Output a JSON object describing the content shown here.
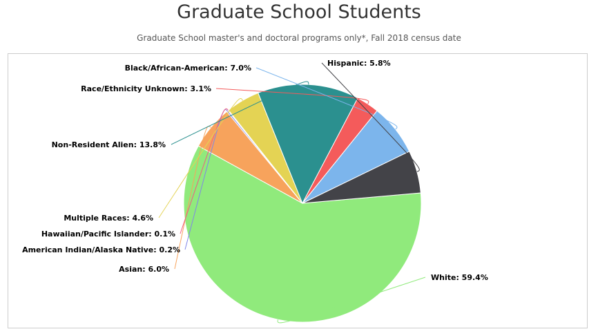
{
  "title": "Graduate School Students",
  "subtitle": "Graduate School master's and doctoral programs only*, Fall 2018 census date",
  "chart_data": {
    "type": "pie",
    "slices": [
      {
        "label": "White",
        "value": 59.4,
        "text": "White: 59.4%",
        "color": "#90ea7c"
      },
      {
        "label": "Asian",
        "value": 6.0,
        "text": "Asian: 6.0%",
        "color": "#f7a35c"
      },
      {
        "label": "American Indian/Alaska Native",
        "value": 0.2,
        "text": "American Indian/Alaska Native: 0.2%",
        "color": "#8085e9"
      },
      {
        "label": "Hawaiian/Pacific Islander",
        "value": 0.1,
        "text": "Hawaiian/Pacific Islander: 0.1%",
        "color": "#f15c80"
      },
      {
        "label": "Multiple Races",
        "value": 4.6,
        "text": "Multiple Races: 4.6%",
        "color": "#e4d354"
      },
      {
        "label": "Non-Resident Alien",
        "value": 13.8,
        "text": "Non-Resident Alien: 13.8%",
        "color": "#2b908f"
      },
      {
        "label": "Race/Ethnicity Unknown",
        "value": 3.1,
        "text": "Race/Ethnicity Unknown: 3.1%",
        "color": "#f45b5b"
      },
      {
        "label": "Black/African-American",
        "value": 7.0,
        "text": "Black/African-American: 7.0%",
        "color": "#7cb5ec"
      },
      {
        "label": "Hispanic",
        "value": 5.8,
        "text": "Hispanic: 5.8%",
        "color": "#434348"
      }
    ]
  }
}
